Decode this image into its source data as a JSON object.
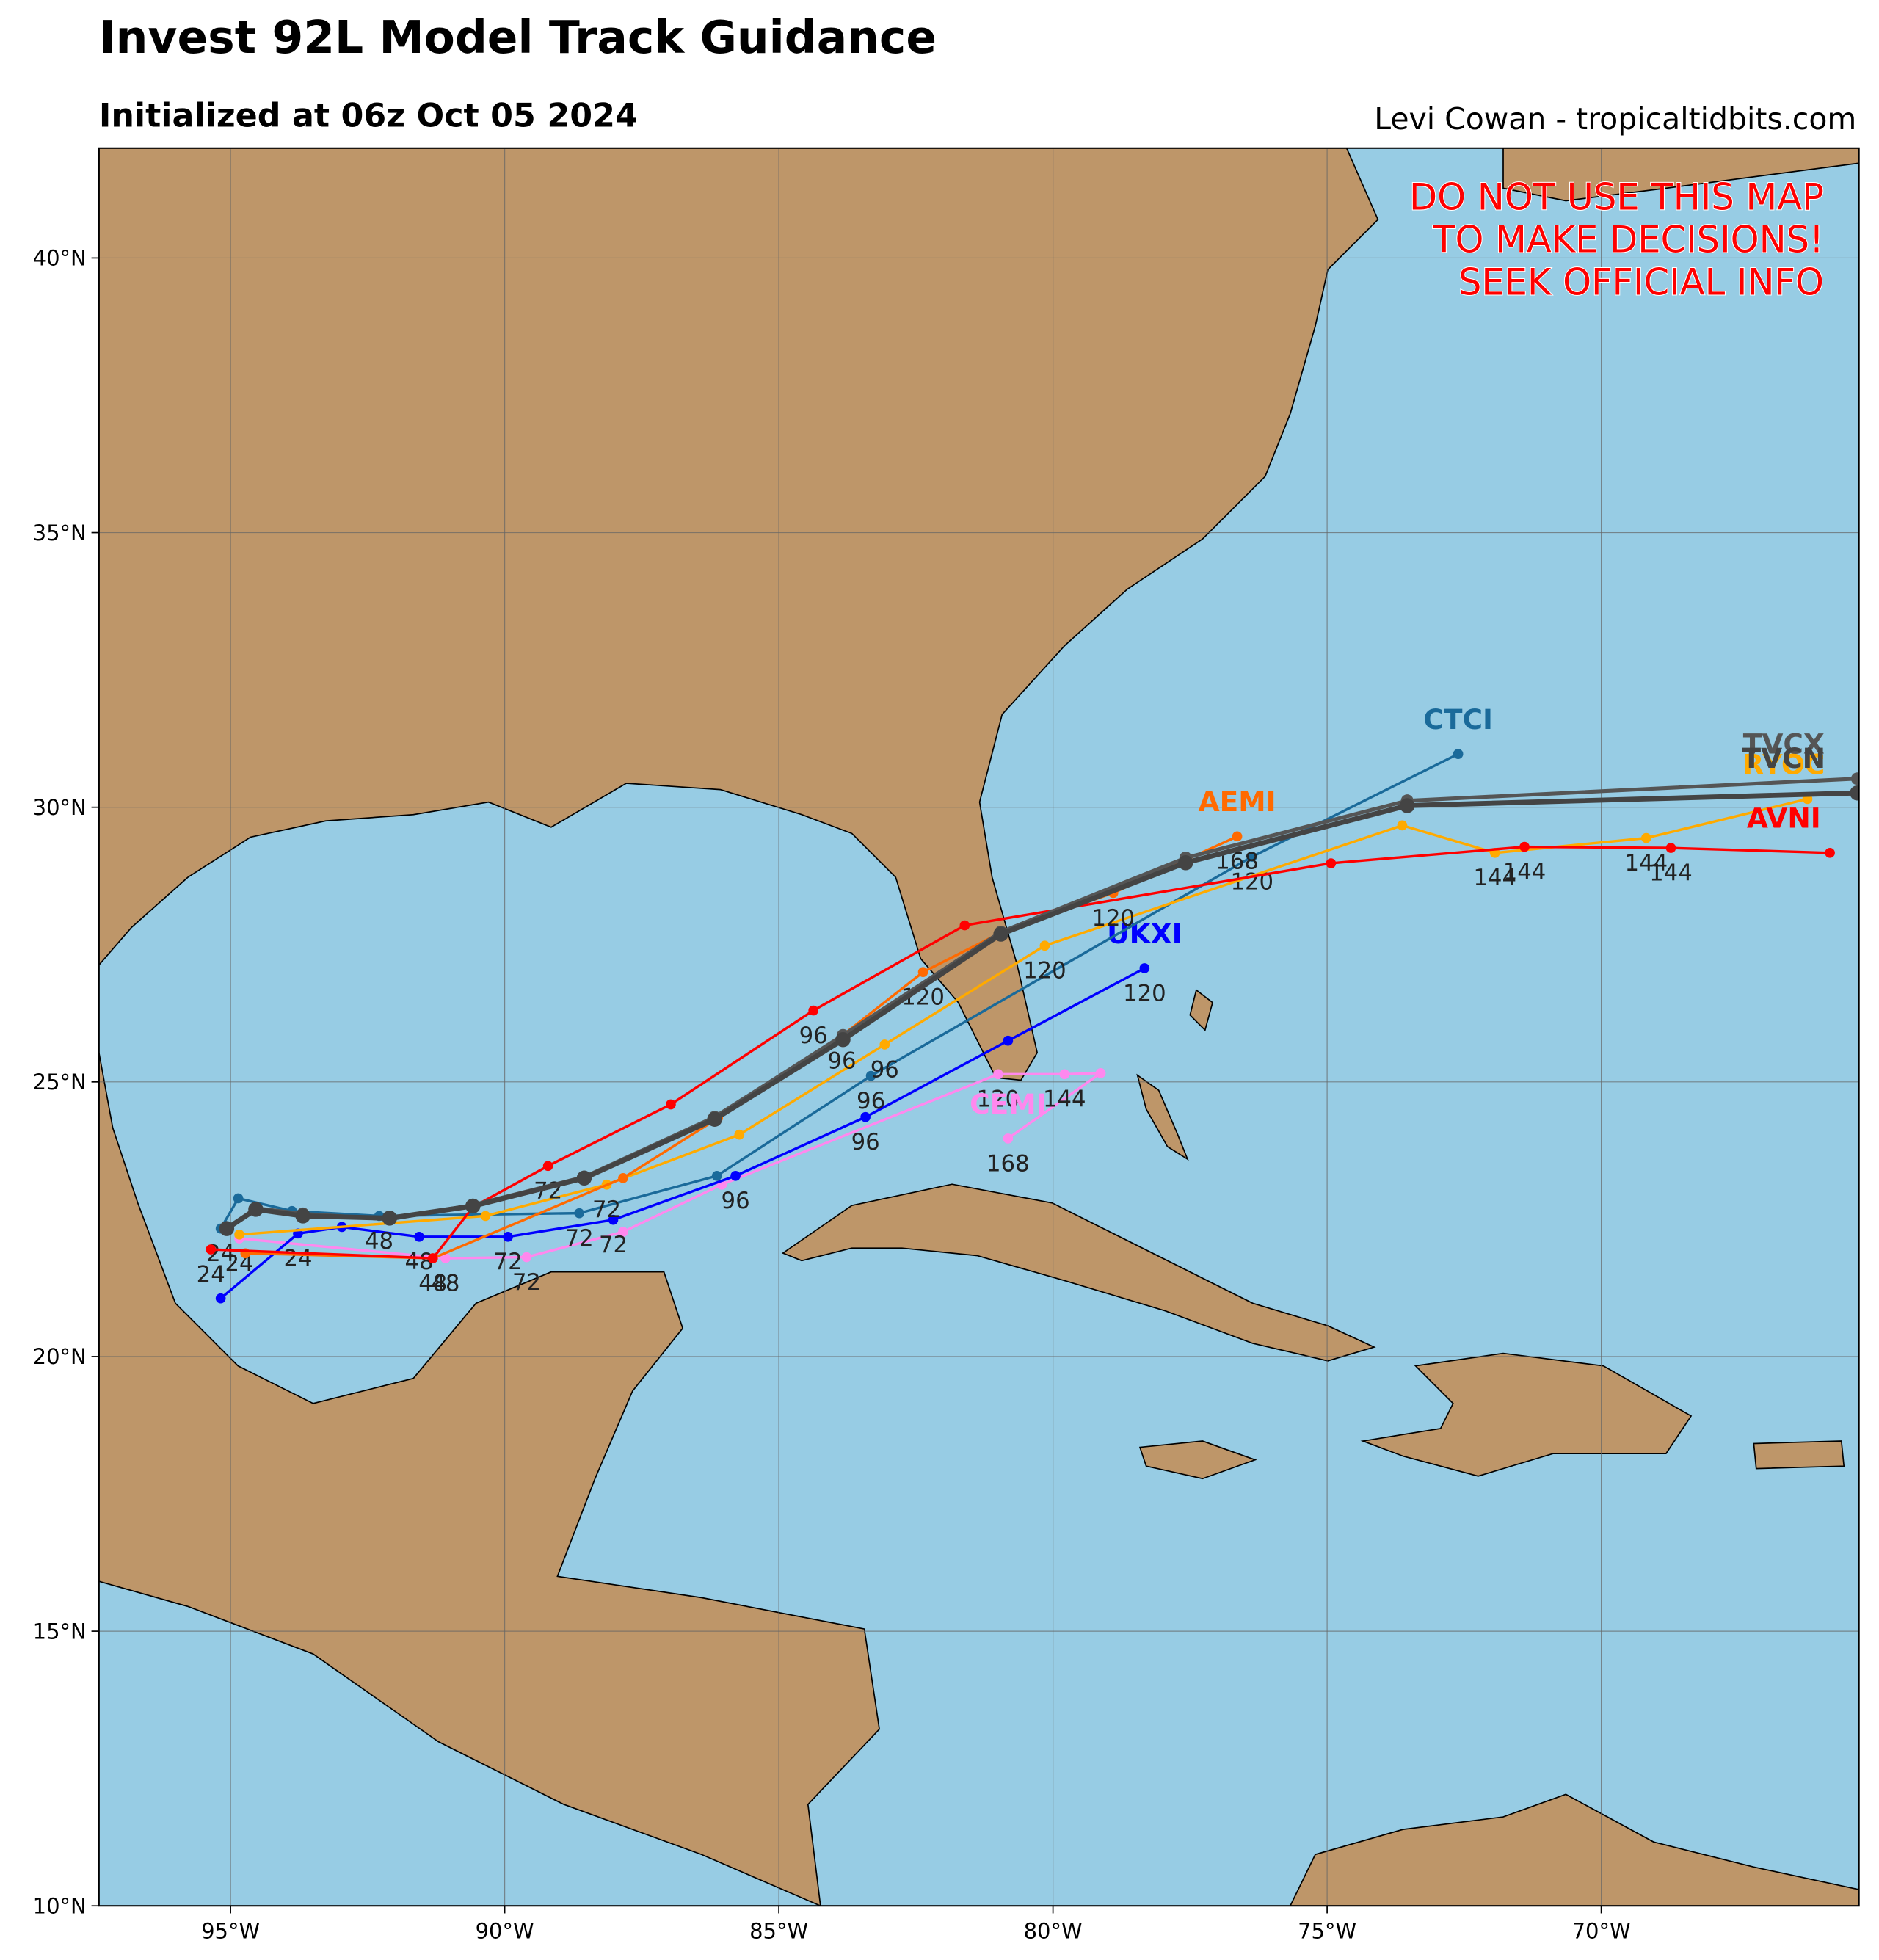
{
  "chart_data": {
    "type": "track",
    "title": "Invest 92L Model Track Guidance",
    "subtitle": "Initialized at 06z Oct 05 2024",
    "credit": "Levi Cowan - tropicaltidbits.com",
    "warning": [
      "DO NOT USE THIS MAP",
      "TO MAKE DECISIONS!",
      "SEEK OFFICIAL INFO"
    ],
    "xlim": [
      -97.4,
      -65.3
    ],
    "ylim": [
      10,
      42
    ],
    "xticks": [
      {
        "value": -95,
        "label": "95°W"
      },
      {
        "value": -90,
        "label": "90°W"
      },
      {
        "value": -85,
        "label": "85°W"
      },
      {
        "value": -80,
        "label": "80°W"
      },
      {
        "value": -75,
        "label": "75°W"
      },
      {
        "value": -70,
        "label": "70°W"
      }
    ],
    "yticks": [
      {
        "value": 10,
        "label": "10°N"
      },
      {
        "value": 15,
        "label": "15°N"
      },
      {
        "value": 20,
        "label": "20°N"
      },
      {
        "value": 25,
        "label": "25°N"
      },
      {
        "value": 30,
        "label": "30°N"
      },
      {
        "value": 35,
        "label": "35°N"
      },
      {
        "value": 40,
        "label": "40°N"
      }
    ],
    "grid": true,
    "series": [
      {
        "name": "CEMI",
        "color": "#ff88ee",
        "line_width": 2,
        "x": [
          -94.84,
          -91.08,
          -89.6,
          -87.84,
          -86.04,
          -81.0,
          -79.79,
          -79.13,
          -80.82
        ],
        "values": [
          22.15,
          21.79,
          21.81,
          22.27,
          23.13,
          25.14,
          25.14,
          25.16,
          23.97
        ],
        "hour_labels": [
          "24",
          "48",
          "72",
          null,
          null,
          "120",
          "144",
          null,
          "168"
        ]
      },
      {
        "name": "UKXI",
        "color": "#0000ff",
        "line_width": 2,
        "x": [
          -95.18,
          -93.77,
          -92.97,
          -91.56,
          -89.94,
          -88.02,
          -85.79,
          -83.42,
          -80.82,
          -78.33
        ],
        "values": [
          21.06,
          22.24,
          22.36,
          22.18,
          22.18,
          22.49,
          23.29,
          24.36,
          25.75,
          27.07
        ],
        "hour_labels": [
          null,
          "24",
          null,
          "48",
          "72",
          "72",
          "96",
          "96",
          null,
          "120"
        ]
      },
      {
        "name": "CTCI",
        "color": "#1a6a9a",
        "line_width": 2,
        "x": [
          -95.18,
          -94.86,
          -93.88,
          -92.29,
          -88.64,
          -86.13,
          -83.32,
          -76.37,
          -72.61
        ],
        "values": [
          22.33,
          22.88,
          22.65,
          22.56,
          22.61,
          23.29,
          25.11,
          29.1,
          30.97
        ],
        "hour_labels": [
          "24",
          null,
          null,
          "48",
          "72",
          null,
          "96",
          "120",
          null
        ]
      },
      {
        "name": "RYOC",
        "color": "#ffaa00",
        "line_width": 2,
        "x": [
          -94.84,
          -90.35,
          -88.14,
          -85.72,
          -83.07,
          -80.15,
          -73.63,
          -71.94,
          -69.18,
          -66.24
        ],
        "values": [
          22.22,
          22.56,
          23.13,
          24.04,
          25.68,
          27.48,
          29.67,
          29.17,
          29.44,
          30.15
        ],
        "hour_labels": [
          null,
          null,
          "72",
          null,
          "96",
          "120",
          null,
          "144",
          "144",
          null
        ]
      },
      {
        "name": "AEMI",
        "color": "#ff6a00",
        "line_width": 2,
        "x": [
          -94.73,
          -91.31,
          -87.84,
          -86.11,
          -83.85,
          -82.37,
          -80.93,
          -78.9,
          -76.64
        ],
        "values": [
          21.88,
          21.79,
          23.25,
          24.34,
          25.84,
          27.0,
          27.73,
          28.44,
          29.47
        ],
        "hour_labels": [
          null,
          "48",
          null,
          null,
          "96",
          "120",
          null,
          "120",
          "168"
        ]
      },
      {
        "name": "AVNI",
        "color": "#ff0000",
        "line_width": 2,
        "x": [
          -95.36,
          -91.31,
          -90.58,
          -89.21,
          -86.97,
          -84.37,
          -81.61,
          -74.93,
          -71.4,
          -68.73,
          -65.83
        ],
        "values": [
          21.95,
          21.79,
          22.72,
          23.47,
          24.59,
          26.3,
          27.85,
          28.98,
          29.28,
          29.26,
          29.17
        ],
        "hour_labels": [
          "24",
          null,
          null,
          "72",
          null,
          "96",
          null,
          null,
          "144",
          "144",
          null
        ]
      },
      {
        "name": "TVCX",
        "color": "#555555",
        "line_width": 3,
        "x": [
          -95.07,
          -94.54,
          -93.68,
          -92.1,
          -90.58,
          -88.55,
          -86.17,
          -83.83,
          -80.95,
          -77.58,
          -73.54,
          -65.33
        ],
        "values": [
          22.33,
          22.7,
          22.6,
          22.5,
          22.76,
          23.27,
          24.36,
          25.85,
          27.73,
          29.08,
          30.12,
          30.52
        ],
        "hour_labels": [
          null,
          null,
          null,
          null,
          null,
          null,
          null,
          null,
          null,
          null,
          null,
          null
        ]
      },
      {
        "name": "TVCN",
        "color": "#444444",
        "line_width": 4,
        "x": [
          -95.07,
          -94.54,
          -93.68,
          -92.1,
          -90.58,
          -88.55,
          -86.17,
          -83.83,
          -80.95,
          -77.58,
          -73.54,
          -65.33
        ],
        "values": [
          22.33,
          22.68,
          22.56,
          22.52,
          22.74,
          23.25,
          24.32,
          25.77,
          27.69,
          28.99,
          30.03,
          30.26
        ],
        "hour_labels": [
          null,
          null,
          null,
          null,
          null,
          null,
          null,
          null,
          null,
          null,
          null,
          null
        ]
      }
    ]
  }
}
